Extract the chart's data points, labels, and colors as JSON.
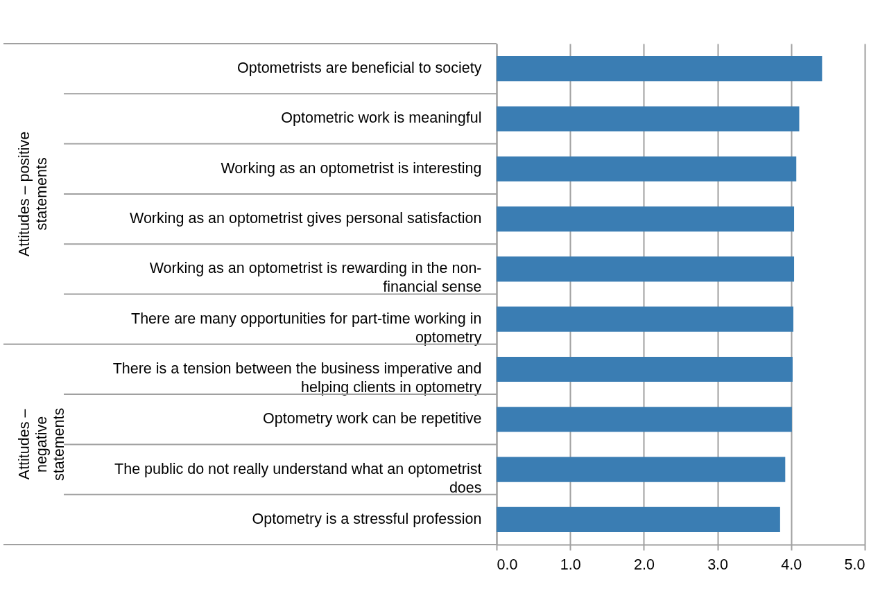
{
  "chart_data": {
    "type": "bar",
    "orientation": "horizontal",
    "categories": [
      "Optometrists are beneficial to society",
      "Optometric work is meaningful",
      "Working as an optometrist is interesting",
      "Working as an optometrist gives personal satisfaction",
      "Working as an optometrist is rewarding in the non-financial sense",
      "There are many opportunities for part-time working in optometry",
      "There is a tension between the business imperative and helping clients in optometry",
      "Optometry work can be repetitive",
      "The public do not really understand what an optometrist does",
      "Optometry is a stressful profession"
    ],
    "values": [
      4.42,
      4.11,
      4.07,
      4.04,
      4.04,
      4.03,
      4.02,
      4.01,
      3.92,
      3.85
    ],
    "color": "#3a7db3",
    "xlim": [
      0,
      5
    ],
    "xticks": [
      {
        "value": 0,
        "label": "0.0"
      },
      {
        "value": 1,
        "label": "1.0"
      },
      {
        "value": 2,
        "label": "2.0"
      },
      {
        "value": 3,
        "label": "3.0"
      },
      {
        "value": 4,
        "label": "4.0"
      },
      {
        "value": 5,
        "label": "5.0"
      }
    ],
    "grid": "x",
    "annotations": [
      "Attitudes – positive statements",
      "Attitudes – negative statements"
    ]
  }
}
